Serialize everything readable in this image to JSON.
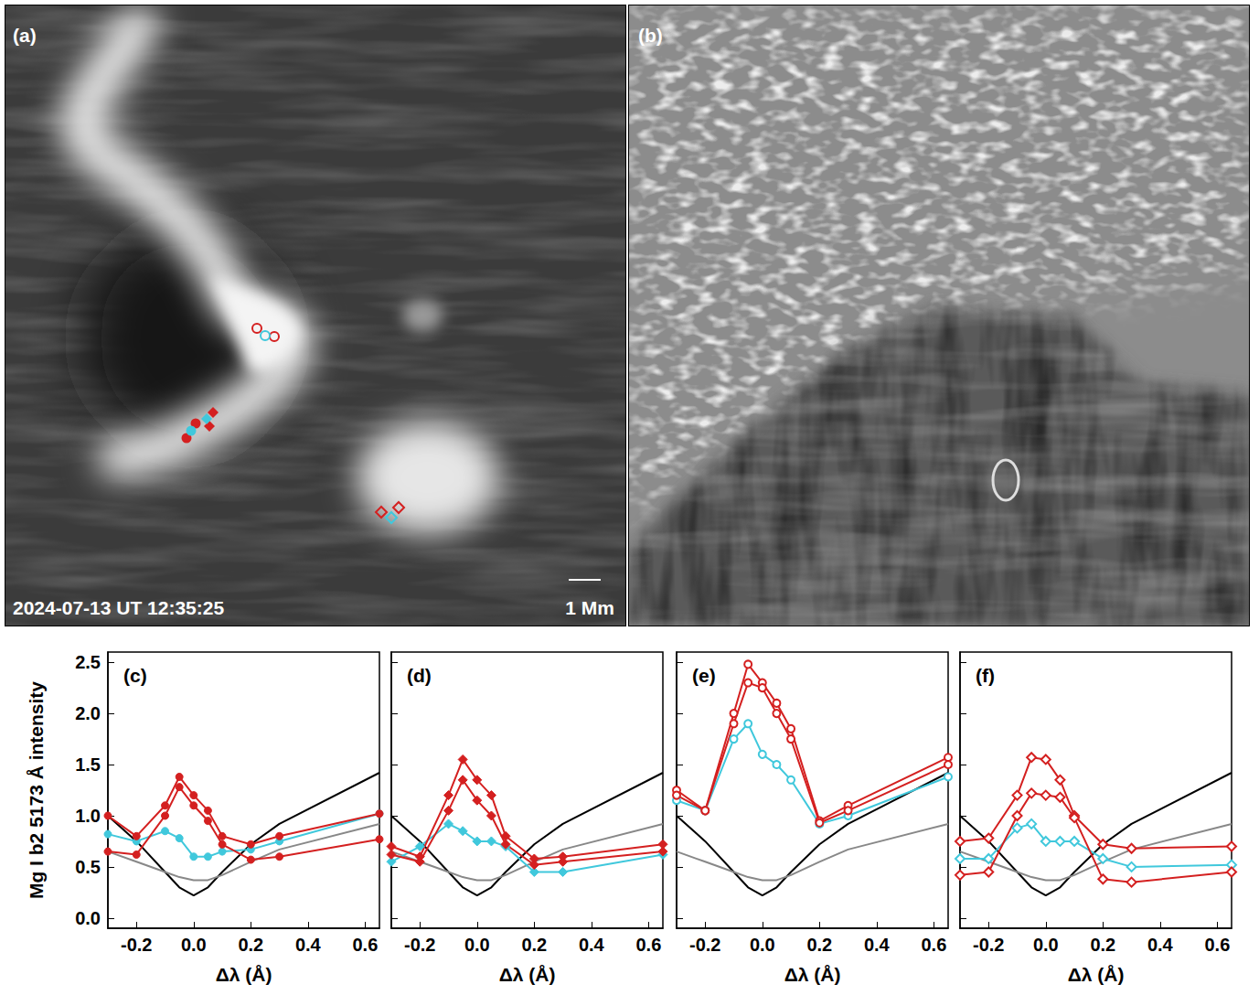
{
  "images": [
    {
      "label": "(a)",
      "timestamp": "2024-07-13 UT 12:35:25",
      "scale_bar": "1 Mm"
    },
    {
      "label": "(b)"
    }
  ],
  "chart_data": [
    {
      "type": "line",
      "title": "(c)",
      "xlabel": "Δλ (Å)",
      "ylabel": "Mg I b2 5173 Å intensity",
      "x": [
        -0.3,
        -0.2,
        -0.1,
        -0.05,
        0.0,
        0.05,
        0.1,
        0.2,
        0.3,
        0.65
      ],
      "xlim": [
        -0.3,
        0.65
      ],
      "xticks": [
        {
          "value": -0.2,
          "label": "-0.2"
        },
        {
          "value": 0,
          "label": "0.0"
        },
        {
          "value": 0.2,
          "label": "0.2"
        },
        {
          "value": 0.4,
          "label": "0.4"
        },
        {
          "value": 0.6,
          "label": "0.6"
        }
      ],
      "ylim": [
        -0.1,
        2.6
      ],
      "yticks": [
        {
          "value": 0,
          "label": "0.0"
        },
        {
          "value": 0.5,
          "label": "0.5"
        },
        {
          "value": 1,
          "label": "1.0"
        },
        {
          "value": 1.5,
          "label": "1.5"
        },
        {
          "value": 2,
          "label": "2.0"
        },
        {
          "value": 2.5,
          "label": "2.5"
        }
      ],
      "grid": false,
      "series": [
        {
          "color": "#000000",
          "marker": "none",
          "values": [
            1.0,
            0.75,
            0.45,
            0.3,
            0.22,
            0.3,
            0.45,
            0.72,
            0.92,
            1.42
          ]
        },
        {
          "color": "#888888",
          "marker": "none",
          "values": [
            0.65,
            0.55,
            0.45,
            0.4,
            0.37,
            0.37,
            0.42,
            0.55,
            0.67,
            0.92
          ]
        },
        {
          "color": "#40c8dc",
          "marker": "circle",
          "values": [
            0.82,
            0.75,
            0.85,
            0.78,
            0.6,
            0.6,
            0.65,
            0.67,
            0.75,
            1.02
          ]
        },
        {
          "color": "#d42020",
          "marker": "circle",
          "values": [
            1.0,
            0.8,
            1.1,
            1.38,
            1.2,
            1.05,
            0.8,
            0.72,
            0.8,
            1.02
          ]
        },
        {
          "color": "#d42020",
          "marker": "circle",
          "values": [
            0.65,
            0.62,
            1.0,
            1.28,
            1.1,
            0.95,
            0.72,
            0.57,
            0.6,
            0.77
          ]
        }
      ]
    },
    {
      "type": "line",
      "title": "(d)",
      "xlabel": "Δλ (Å)",
      "tick_labels": "x",
      "x": [
        -0.3,
        -0.2,
        -0.1,
        -0.05,
        0.0,
        0.05,
        0.1,
        0.2,
        0.3,
        0.65
      ],
      "xlim": [
        -0.3,
        0.65
      ],
      "xticks": [
        {
          "value": -0.2,
          "label": "-0.2"
        },
        {
          "value": 0,
          "label": "0.0"
        },
        {
          "value": 0.2,
          "label": "0.2"
        },
        {
          "value": 0.4,
          "label": "0.4"
        },
        {
          "value": 0.6,
          "label": "0.6"
        }
      ],
      "ylim": [
        -0.1,
        2.6
      ],
      "yticks": [
        {
          "value": 0,
          "label": "0.0"
        },
        {
          "value": 0.5,
          "label": "0.5"
        },
        {
          "value": 1,
          "label": "1.0"
        },
        {
          "value": 1.5,
          "label": "1.5"
        },
        {
          "value": 2,
          "label": "2.0"
        },
        {
          "value": 2.5,
          "label": "2.5"
        }
      ],
      "grid": false,
      "series": [
        {
          "color": "#000000",
          "marker": "none",
          "values": [
            1.0,
            0.75,
            0.45,
            0.3,
            0.22,
            0.3,
            0.45,
            0.72,
            0.92,
            1.42
          ]
        },
        {
          "color": "#888888",
          "marker": "none",
          "values": [
            0.65,
            0.55,
            0.45,
            0.4,
            0.37,
            0.37,
            0.42,
            0.55,
            0.67,
            0.92
          ]
        },
        {
          "color": "#40c8dc",
          "marker": "diamond",
          "values": [
            0.55,
            0.7,
            0.92,
            0.85,
            0.75,
            0.75,
            0.7,
            0.45,
            0.45,
            0.62
          ]
        },
        {
          "color": "#d42020",
          "marker": "diamond",
          "values": [
            0.7,
            0.6,
            1.2,
            1.55,
            1.35,
            1.2,
            0.8,
            0.58,
            0.6,
            0.72
          ]
        },
        {
          "color": "#d42020",
          "marker": "diamond",
          "values": [
            0.62,
            0.55,
            1.05,
            1.35,
            1.15,
            1.0,
            0.72,
            0.52,
            0.55,
            0.65
          ]
        }
      ]
    },
    {
      "type": "line",
      "title": "(e)",
      "xlabel": "Δλ (Å)",
      "tick_labels": "x",
      "x": [
        -0.3,
        -0.2,
        -0.1,
        -0.05,
        0.0,
        0.05,
        0.1,
        0.2,
        0.3,
        0.65
      ],
      "xlim": [
        -0.3,
        0.65
      ],
      "xticks": [
        {
          "value": -0.2,
          "label": "-0.2"
        },
        {
          "value": 0,
          "label": "0.0"
        },
        {
          "value": 0.2,
          "label": "0.2"
        },
        {
          "value": 0.4,
          "label": "0.4"
        },
        {
          "value": 0.6,
          "label": "0.6"
        }
      ],
      "ylim": [
        -0.1,
        2.6
      ],
      "yticks": [
        {
          "value": 0,
          "label": "0.0"
        },
        {
          "value": 0.5,
          "label": "0.5"
        },
        {
          "value": 1,
          "label": "1.0"
        },
        {
          "value": 1.5,
          "label": "1.5"
        },
        {
          "value": 2,
          "label": "2.0"
        },
        {
          "value": 2.5,
          "label": "2.5"
        }
      ],
      "grid": false,
      "series": [
        {
          "color": "#000000",
          "marker": "none",
          "values": [
            1.0,
            0.75,
            0.45,
            0.3,
            0.22,
            0.3,
            0.45,
            0.72,
            0.92,
            1.42
          ]
        },
        {
          "color": "#888888",
          "marker": "none",
          "values": [
            0.65,
            0.55,
            0.45,
            0.4,
            0.37,
            0.37,
            0.42,
            0.55,
            0.67,
            0.92
          ]
        },
        {
          "color": "#40c8dc",
          "marker": "open_circle",
          "values": [
            1.15,
            1.05,
            1.75,
            1.9,
            1.6,
            1.5,
            1.35,
            0.92,
            1.0,
            1.38
          ]
        },
        {
          "color": "#d42020",
          "marker": "open_circle",
          "values": [
            1.25,
            1.05,
            2.0,
            2.48,
            2.3,
            2.1,
            1.85,
            0.95,
            1.1,
            1.57
          ]
        },
        {
          "color": "#d42020",
          "marker": "open_circle",
          "values": [
            1.2,
            1.05,
            1.9,
            2.3,
            2.25,
            2.0,
            1.75,
            0.93,
            1.05,
            1.5
          ]
        }
      ]
    },
    {
      "type": "line",
      "title": "(f)",
      "xlabel": "Δλ (Å)",
      "tick_labels": "x",
      "x": [
        -0.3,
        -0.2,
        -0.1,
        -0.05,
        0.0,
        0.05,
        0.1,
        0.2,
        0.3,
        0.65
      ],
      "xlim": [
        -0.3,
        0.65
      ],
      "xticks": [
        {
          "value": -0.2,
          "label": "-0.2"
        },
        {
          "value": 0,
          "label": "0.0"
        },
        {
          "value": 0.2,
          "label": "0.2"
        },
        {
          "value": 0.4,
          "label": "0.4"
        },
        {
          "value": 0.6,
          "label": "0.6"
        }
      ],
      "ylim": [
        -0.1,
        2.6
      ],
      "yticks": [
        {
          "value": 0,
          "label": "0.0"
        },
        {
          "value": 0.5,
          "label": "0.5"
        },
        {
          "value": 1,
          "label": "1.0"
        },
        {
          "value": 1.5,
          "label": "1.5"
        },
        {
          "value": 2,
          "label": "2.0"
        },
        {
          "value": 2.5,
          "label": "2.5"
        }
      ],
      "grid": false,
      "series": [
        {
          "color": "#000000",
          "marker": "none",
          "values": [
            1.0,
            0.75,
            0.45,
            0.3,
            0.22,
            0.3,
            0.45,
            0.72,
            0.92,
            1.42
          ]
        },
        {
          "color": "#888888",
          "marker": "none",
          "values": [
            0.65,
            0.55,
            0.45,
            0.4,
            0.37,
            0.37,
            0.42,
            0.55,
            0.67,
            0.92
          ]
        },
        {
          "color": "#40c8dc",
          "marker": "open_diamond",
          "values": [
            0.58,
            0.58,
            0.88,
            0.92,
            0.75,
            0.75,
            0.75,
            0.58,
            0.5,
            0.52
          ]
        },
        {
          "color": "#d42020",
          "marker": "open_diamond",
          "values": [
            0.75,
            0.78,
            1.2,
            1.57,
            1.55,
            1.35,
            1.0,
            0.72,
            0.68,
            0.7
          ]
        },
        {
          "color": "#d42020",
          "marker": "open_diamond",
          "values": [
            0.42,
            0.45,
            1.0,
            1.22,
            1.2,
            1.18,
            0.98,
            0.38,
            0.35,
            0.45
          ]
        }
      ]
    }
  ]
}
